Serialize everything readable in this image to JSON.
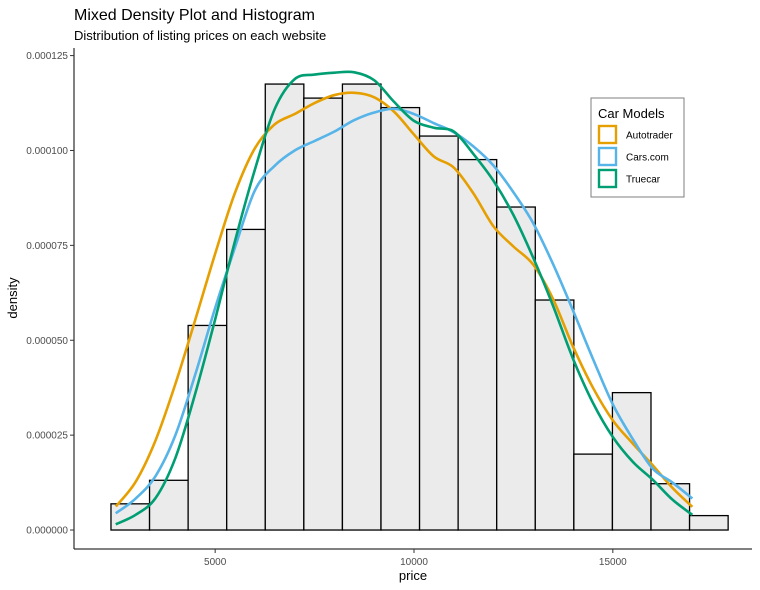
{
  "chart_data": {
    "type": "histogram+density",
    "title": "Mixed Density Plot and Histogram",
    "subtitle": "Distribution of listing prices on each website",
    "xlabel": "price",
    "ylabel": "density",
    "xlim": [
      1450,
      18500
    ],
    "ylim": [
      -5e-06,
      0.000127
    ],
    "x_ticks": [
      5000,
      10000,
      15000
    ],
    "x_tick_labels": [
      "5000",
      "10000",
      "15000"
    ],
    "y_ticks": [
      0,
      2.5e-05,
      5e-05,
      7.5e-05,
      0.0001,
      0.000125
    ],
    "y_tick_labels": [
      "0.000000",
      "0.000025",
      "0.000050",
      "0.000075",
      "0.000100",
      "0.000125"
    ],
    "histogram": {
      "bin_edges": [
        2380,
        3350,
        4320,
        5290,
        6260,
        7230,
        8200,
        9170,
        10140,
        11110,
        12080,
        13050,
        14020,
        14990,
        15960,
        16930,
        17900
      ],
      "values": [
        6.9e-06,
        1.31e-05,
        5.39e-05,
        7.92e-05,
        0.0001175,
        0.0001138,
        0.0001175,
        0.0001113,
        0.0001038,
        9.76e-05,
        8.51e-05,
        6.06e-05,
        2e-05,
        3.62e-05,
        1.22e-05,
        3.8e-06
      ],
      "fill": "#ebebeb",
      "stroke": "#000000"
    },
    "legend": {
      "title": "Car Models",
      "position": "top-right"
    },
    "series": [
      {
        "name": "Autotrader",
        "color": "#E69F00",
        "x": [
          2500,
          3000,
          3500,
          4000,
          4500,
          5000,
          5500,
          6000,
          6500,
          7000,
          7500,
          8000,
          8500,
          9000,
          9500,
          10000,
          10500,
          11000,
          11500,
          12000,
          12500,
          13000,
          13500,
          14000,
          14500,
          15000,
          15500,
          16000,
          16500,
          17000
        ],
        "y": [
          6.2e-06,
          1.27e-05,
          2.36e-05,
          3.85e-05,
          5.54e-05,
          7.28e-05,
          8.89e-05,
          0.0001006,
          0.0001069,
          0.0001096,
          0.0001125,
          0.0001146,
          0.0001152,
          0.000114,
          0.0001102,
          0.0001042,
          9.84e-05,
          9.55e-05,
          8.86e-05,
          8e-05,
          7.47e-05,
          6.99e-05,
          6.08e-05,
          4.83e-05,
          3.75e-05,
          2.89e-05,
          2.28e-05,
          1.71e-05,
          1.11e-05,
          6.1e-06
        ]
      },
      {
        "name": "Cars.com",
        "color": "#56B4E9",
        "x": [
          2500,
          3000,
          3500,
          4000,
          4500,
          5000,
          5500,
          6000,
          6500,
          7000,
          7500,
          8000,
          8500,
          9000,
          9500,
          10000,
          10500,
          11000,
          11500,
          12000,
          12500,
          13000,
          13500,
          14000,
          14500,
          15000,
          15500,
          16000,
          16500,
          17000
        ],
        "y": [
          4.4e-06,
          8.3e-06,
          1.42e-05,
          2.5e-05,
          4.1e-05,
          5.85e-05,
          7.45e-05,
          8.95e-05,
          9.6e-05,
          0.0001,
          0.0001025,
          0.000105,
          0.000108,
          0.00011,
          0.000111,
          0.0001096,
          0.0001072,
          0.0001048,
          0.000101,
          9.6e-05,
          8.9e-05,
          8.08e-05,
          7e-05,
          5.78e-05,
          4.51e-05,
          3.31e-05,
          2.4e-05,
          1.62e-05,
          1.25e-05,
          8.3e-06
        ]
      },
      {
        "name": "Truecar",
        "color": "#009E73",
        "x": [
          2500,
          3000,
          3500,
          4000,
          4500,
          5000,
          5500,
          6000,
          6500,
          7000,
          7500,
          8000,
          8500,
          9000,
          9500,
          10000,
          10500,
          11000,
          11500,
          12000,
          12500,
          13000,
          13500,
          14000,
          14500,
          15000,
          15500,
          16000,
          16500,
          17000
        ],
        "y": [
          1.5e-06,
          4e-06,
          8.4e-06,
          1.9e-05,
          3.6e-05,
          5.55e-05,
          7.62e-05,
          9.5e-05,
          0.000111,
          0.0001188,
          0.00012,
          0.0001205,
          0.0001206,
          0.0001185,
          0.0001128,
          0.0001078,
          0.000106,
          0.000105,
          9.9e-05,
          9.2e-05,
          8.3e-05,
          7.17e-05,
          5.9e-05,
          4.51e-05,
          3.35e-05,
          2.45e-05,
          1.8e-05,
          1.33e-05,
          8e-06,
          4e-06
        ]
      }
    ]
  }
}
